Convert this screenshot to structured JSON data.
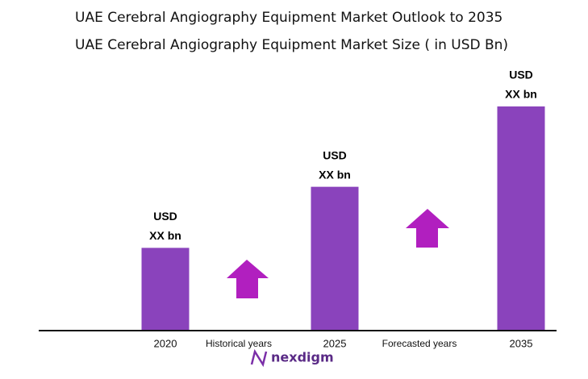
{
  "chart_data": {
    "type": "bar",
    "title": "UAE Cerebral Angiography Equipment Market Outlook to 2035",
    "subtitle": "UAE Cerebral Angiography Equipment Market Size  ( in USD Bn)",
    "categories": [
      "2020",
      "2025",
      "2035"
    ],
    "values": [
      10.2,
      17.8,
      27.8
    ],
    "value_labels": [
      [
        "USD",
        "XX bn"
      ],
      [
        "USD",
        "XX bn"
      ],
      [
        "USD",
        "XX bn"
      ]
    ],
    "color": "#8a43bc",
    "annotations": [
      "Historical years",
      "Forecasted years"
    ],
    "brand": "nexdigm"
  }
}
